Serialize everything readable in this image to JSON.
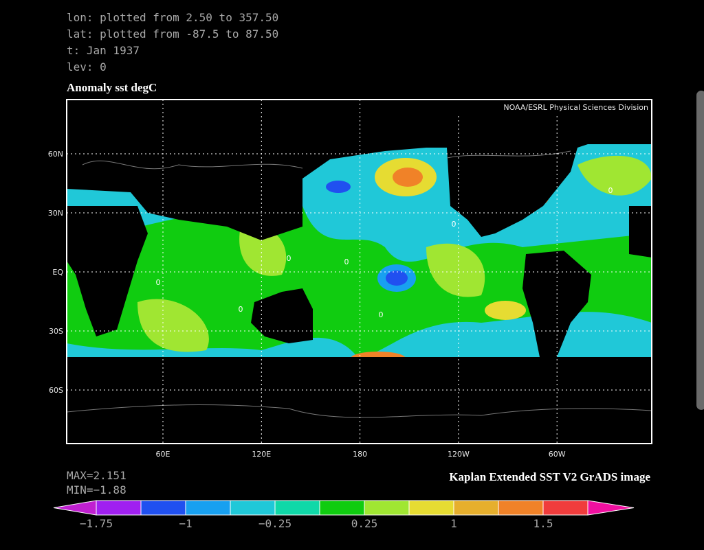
{
  "header": {
    "lines": [
      "lon: plotted from 2.50 to 357.50",
      "lat: plotted from -87.5 to 87.50",
      "t: Jan 1937",
      "lev: 0"
    ]
  },
  "plot": {
    "title": "Anomaly sst degC",
    "credit": "NOAA/ESRL Physical Sciences Division",
    "lat_labels": [
      "60N",
      "30N",
      "EQ",
      "30S",
      "60S"
    ],
    "lon_labels": [
      "60E",
      "120E",
      "180",
      "120W",
      "60W"
    ],
    "contour_labels": [
      "0",
      "0",
      "0",
      "0",
      "0",
      "0",
      "0"
    ],
    "source": "Kaplan Extended SST V2 GrADS image"
  },
  "stats": {
    "max": "MAX=2.151",
    "min": "MIN=−1.88"
  },
  "colorbar": {
    "low_color": "#c020d0",
    "high_color": "#f010a0",
    "colors": [
      "#a020f0",
      "#2050f0",
      "#18a0f0",
      "#20c8d8",
      "#10d8a8",
      "#10cc10",
      "#a0e632",
      "#e6dc32",
      "#e6af2d",
      "#f08228",
      "#f03c3c"
    ],
    "labels": [
      "−1.75",
      "−1",
      "−0.25",
      "0.25",
      "1",
      "1.5"
    ]
  }
}
